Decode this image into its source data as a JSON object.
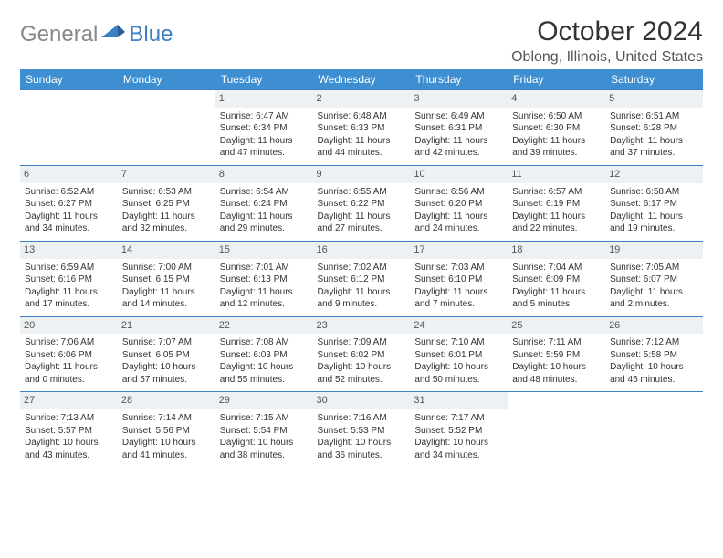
{
  "logo": {
    "part1": "General",
    "part2": "Blue"
  },
  "title": "October 2024",
  "location": "Oblong, Illinois, United States",
  "weekdays": [
    "Sunday",
    "Monday",
    "Tuesday",
    "Wednesday",
    "Thursday",
    "Friday",
    "Saturday"
  ],
  "colors": {
    "header_bg": "#3d8fd1",
    "header_text": "#ffffff",
    "rule": "#3d7fc1",
    "daynum_bg": "#eef1f3",
    "logo_gray": "#888888",
    "logo_blue": "#3d7fc1",
    "page_bg": "#ffffff"
  },
  "fonts": {
    "body_pt": 10,
    "daynum_pt": 11,
    "weekday_pt": 12,
    "title_pt": 30,
    "location_pt": 16
  },
  "grid": {
    "first_weekday_index": 2,
    "days_in_month": 31
  },
  "days": [
    {
      "n": 1,
      "sunrise": "6:47 AM",
      "sunset": "6:34 PM",
      "daylight": "11 hours and 47 minutes."
    },
    {
      "n": 2,
      "sunrise": "6:48 AM",
      "sunset": "6:33 PM",
      "daylight": "11 hours and 44 minutes."
    },
    {
      "n": 3,
      "sunrise": "6:49 AM",
      "sunset": "6:31 PM",
      "daylight": "11 hours and 42 minutes."
    },
    {
      "n": 4,
      "sunrise": "6:50 AM",
      "sunset": "6:30 PM",
      "daylight": "11 hours and 39 minutes."
    },
    {
      "n": 5,
      "sunrise": "6:51 AM",
      "sunset": "6:28 PM",
      "daylight": "11 hours and 37 minutes."
    },
    {
      "n": 6,
      "sunrise": "6:52 AM",
      "sunset": "6:27 PM",
      "daylight": "11 hours and 34 minutes."
    },
    {
      "n": 7,
      "sunrise": "6:53 AM",
      "sunset": "6:25 PM",
      "daylight": "11 hours and 32 minutes."
    },
    {
      "n": 8,
      "sunrise": "6:54 AM",
      "sunset": "6:24 PM",
      "daylight": "11 hours and 29 minutes."
    },
    {
      "n": 9,
      "sunrise": "6:55 AM",
      "sunset": "6:22 PM",
      "daylight": "11 hours and 27 minutes."
    },
    {
      "n": 10,
      "sunrise": "6:56 AM",
      "sunset": "6:20 PM",
      "daylight": "11 hours and 24 minutes."
    },
    {
      "n": 11,
      "sunrise": "6:57 AM",
      "sunset": "6:19 PM",
      "daylight": "11 hours and 22 minutes."
    },
    {
      "n": 12,
      "sunrise": "6:58 AM",
      "sunset": "6:17 PM",
      "daylight": "11 hours and 19 minutes."
    },
    {
      "n": 13,
      "sunrise": "6:59 AM",
      "sunset": "6:16 PM",
      "daylight": "11 hours and 17 minutes."
    },
    {
      "n": 14,
      "sunrise": "7:00 AM",
      "sunset": "6:15 PM",
      "daylight": "11 hours and 14 minutes."
    },
    {
      "n": 15,
      "sunrise": "7:01 AM",
      "sunset": "6:13 PM",
      "daylight": "11 hours and 12 minutes."
    },
    {
      "n": 16,
      "sunrise": "7:02 AM",
      "sunset": "6:12 PM",
      "daylight": "11 hours and 9 minutes."
    },
    {
      "n": 17,
      "sunrise": "7:03 AM",
      "sunset": "6:10 PM",
      "daylight": "11 hours and 7 minutes."
    },
    {
      "n": 18,
      "sunrise": "7:04 AM",
      "sunset": "6:09 PM",
      "daylight": "11 hours and 5 minutes."
    },
    {
      "n": 19,
      "sunrise": "7:05 AM",
      "sunset": "6:07 PM",
      "daylight": "11 hours and 2 minutes."
    },
    {
      "n": 20,
      "sunrise": "7:06 AM",
      "sunset": "6:06 PM",
      "daylight": "11 hours and 0 minutes."
    },
    {
      "n": 21,
      "sunrise": "7:07 AM",
      "sunset": "6:05 PM",
      "daylight": "10 hours and 57 minutes."
    },
    {
      "n": 22,
      "sunrise": "7:08 AM",
      "sunset": "6:03 PM",
      "daylight": "10 hours and 55 minutes."
    },
    {
      "n": 23,
      "sunrise": "7:09 AM",
      "sunset": "6:02 PM",
      "daylight": "10 hours and 52 minutes."
    },
    {
      "n": 24,
      "sunrise": "7:10 AM",
      "sunset": "6:01 PM",
      "daylight": "10 hours and 50 minutes."
    },
    {
      "n": 25,
      "sunrise": "7:11 AM",
      "sunset": "5:59 PM",
      "daylight": "10 hours and 48 minutes."
    },
    {
      "n": 26,
      "sunrise": "7:12 AM",
      "sunset": "5:58 PM",
      "daylight": "10 hours and 45 minutes."
    },
    {
      "n": 27,
      "sunrise": "7:13 AM",
      "sunset": "5:57 PM",
      "daylight": "10 hours and 43 minutes."
    },
    {
      "n": 28,
      "sunrise": "7:14 AM",
      "sunset": "5:56 PM",
      "daylight": "10 hours and 41 minutes."
    },
    {
      "n": 29,
      "sunrise": "7:15 AM",
      "sunset": "5:54 PM",
      "daylight": "10 hours and 38 minutes."
    },
    {
      "n": 30,
      "sunrise": "7:16 AM",
      "sunset": "5:53 PM",
      "daylight": "10 hours and 36 minutes."
    },
    {
      "n": 31,
      "sunrise": "7:17 AM",
      "sunset": "5:52 PM",
      "daylight": "10 hours and 34 minutes."
    }
  ],
  "labels": {
    "sunrise": "Sunrise: ",
    "sunset": "Sunset: ",
    "daylight": "Daylight: "
  }
}
